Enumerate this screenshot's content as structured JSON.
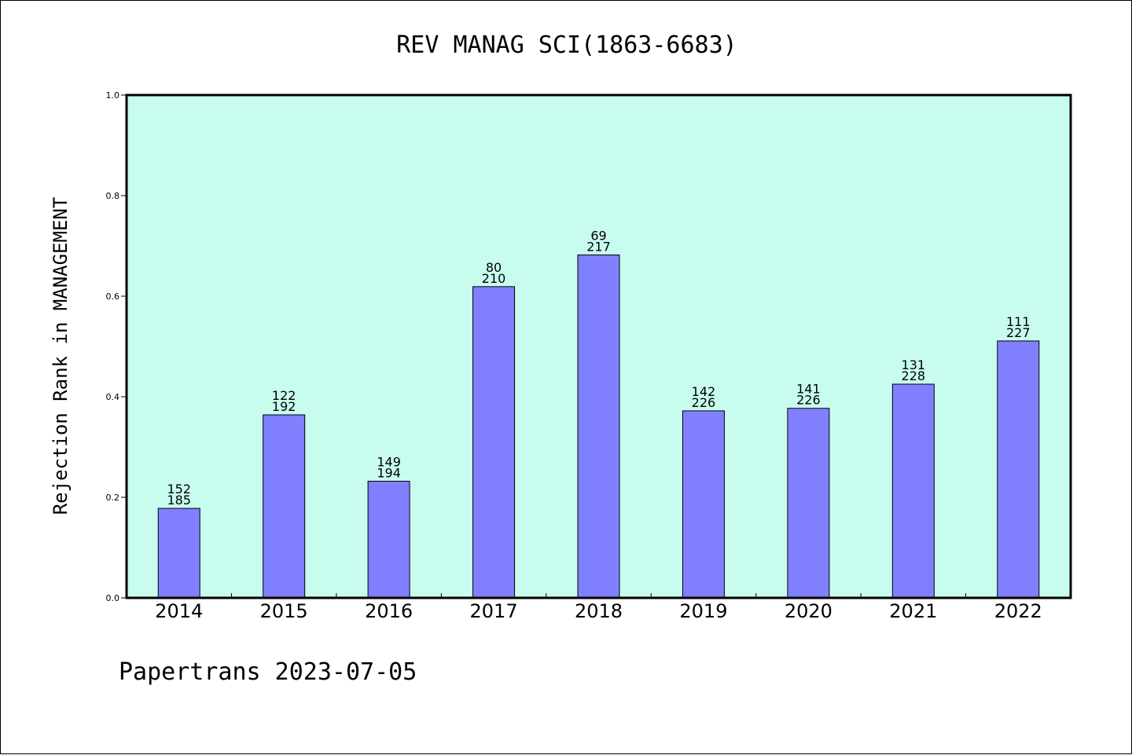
{
  "chart_data": {
    "type": "bar",
    "title": "REV MANAG SCI(1863-6683)",
    "ylabel": "Rejection Rank in MANAGEMENT",
    "xlabel": "",
    "categories": [
      "2014",
      "2015",
      "2016",
      "2017",
      "2018",
      "2019",
      "2020",
      "2021",
      "2022"
    ],
    "values": [
      0.178,
      0.364,
      0.232,
      0.619,
      0.682,
      0.372,
      0.377,
      0.425,
      0.511
    ],
    "labels_top": [
      "152",
      "122",
      "149",
      "80",
      "69",
      "142",
      "141",
      "131",
      "111"
    ],
    "labels_bottom": [
      "185",
      "192",
      "194",
      "210",
      "217",
      "226",
      "226",
      "228",
      "227"
    ],
    "ylim": [
      0,
      1.0
    ],
    "yticks": [
      "0.0",
      "0.2",
      "0.4",
      "0.6",
      "0.8",
      "1.0"
    ],
    "grid": false,
    "colors": {
      "plot_bg": "#c8fcee",
      "bar_fill": "#8080ff",
      "bar_edge": "#000000"
    }
  },
  "footer": {
    "credit": "Papertrans 2023-07-05"
  }
}
